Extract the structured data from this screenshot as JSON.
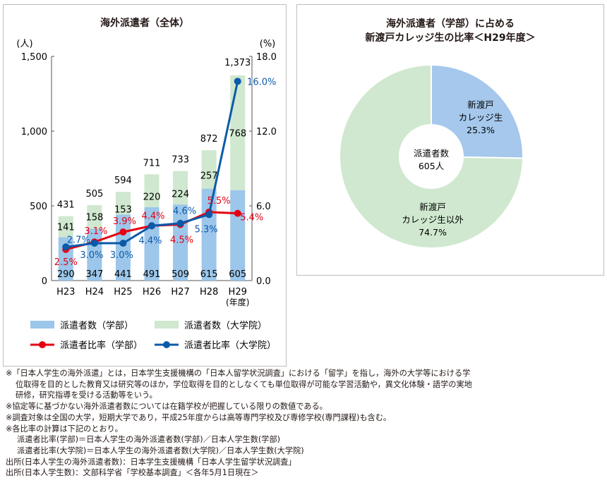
{
  "chart_data": [
    {
      "type": "bar",
      "title": "海外派遣者（全体）",
      "left_axis_unit": "(人)",
      "right_axis_unit": "(%)",
      "categories": [
        "H23",
        "H24",
        "H25",
        "H26",
        "H27",
        "H28",
        "H29"
      ],
      "last_category_note": "(年度)",
      "yticks_left": [
        "0",
        "500",
        "1,000",
        "1,500"
      ],
      "yticks_right": [
        "0.0",
        "6.0",
        "12.0",
        "18.0"
      ],
      "ylim_left": [
        0,
        1500
      ],
      "ylim_right": [
        0,
        18
      ],
      "series": [
        {
          "name": "派遣者数（学部）",
          "kind": "bar",
          "color": "#9cc6ea",
          "values": [
            290,
            347,
            441,
            491,
            509,
            615,
            605
          ]
        },
        {
          "name": "派遣者数（大学院）",
          "kind": "bar",
          "color": "#cfe8cf",
          "values": [
            141,
            158,
            153,
            220,
            224,
            257,
            768
          ]
        },
        {
          "name": "派遣者比率（学部）",
          "kind": "line",
          "axis": "right",
          "color": "#e60012",
          "values": [
            2.5,
            3.1,
            3.9,
            4.4,
            4.5,
            5.5,
            5.4
          ]
        },
        {
          "name": "派遣者比率（大学院）",
          "kind": "line",
          "axis": "right",
          "color": "#0b5aa8",
          "values": [
            2.7,
            3.0,
            3.0,
            4.4,
            4.6,
            5.3,
            16.0
          ]
        }
      ],
      "totals": [
        "431",
        "505",
        "594",
        "711",
        "733",
        "872",
        "1,373"
      ],
      "bar_labels_undergrad": [
        "290",
        "347",
        "441",
        "491",
        "509",
        "615",
        "605"
      ],
      "bar_labels_grad": [
        "141",
        "158",
        "153",
        "220",
        "224",
        "257",
        "768"
      ],
      "ratio_labels_undergrad": [
        "2.5%",
        "3.1%",
        "3.9%",
        "4.4%",
        "4.5%",
        "5.5%",
        "5.4%"
      ],
      "ratio_labels_grad": [
        "2.7%",
        "3.0%",
        "3.0%",
        "4.4%",
        "4.6%",
        "5.3%",
        "16.0%"
      ]
    },
    {
      "type": "pie",
      "title_line1": "海外派遣者（学部）に占める",
      "title_line2": "新渡戸カレッジ生の比率＜H29年度＞",
      "center_label_line1": "派遣者数",
      "center_label_line2": "605人",
      "slices": [
        {
          "label_line1": "新渡戸",
          "label_line2": "カレッジ生",
          "value_text": "25.3%",
          "value": 25.3,
          "color": "#a5c8ec"
        },
        {
          "label_line1": "新渡戸",
          "label_line2": "カレッジ生以外",
          "value_text": "74.7%",
          "value": 74.7,
          "color": "#cfe8cf"
        }
      ]
    }
  ],
  "notes": {
    "n1": "※「日本人学生の海外派遣」とは，日本学生支援機構の「日本人留学状況調査」における「留学」を指し，海外の大学等における学",
    "n1b": "位取得を目的とした教育又は研究等のほか，学位取得を目的としなくても単位取得が可能な学習活動や，異文化体験・語学の実地",
    "n1c": "研修，研究指導を受ける活動等をいう。",
    "n2": "※協定等に基づかない海外派遣者数については在籍学校が把握している限りの数値である。",
    "n3": "※調査対象は全国の大学，短期大学であり，平成25年度からは高等専門学校及び専修学校(専門課程)も含む。",
    "n4": "※各比率の計算は下記のとおり。",
    "n5": "派遣者比率(学部)＝日本人学生の海外派遣者数(学部)／日本人学生数(学部)",
    "n6": "派遣者比率(大学院)＝日本人学生の海外派遣者数(大学院)／日本人学生数(大学院)",
    "n7": "出所(日本人学生の海外派遣者数)：日本学生支援機構「日本人学生留学状況調査」",
    "n8": "出所(日本人学生数)：文部科学省「学校基本調査」＜各年5月1日現在＞"
  }
}
